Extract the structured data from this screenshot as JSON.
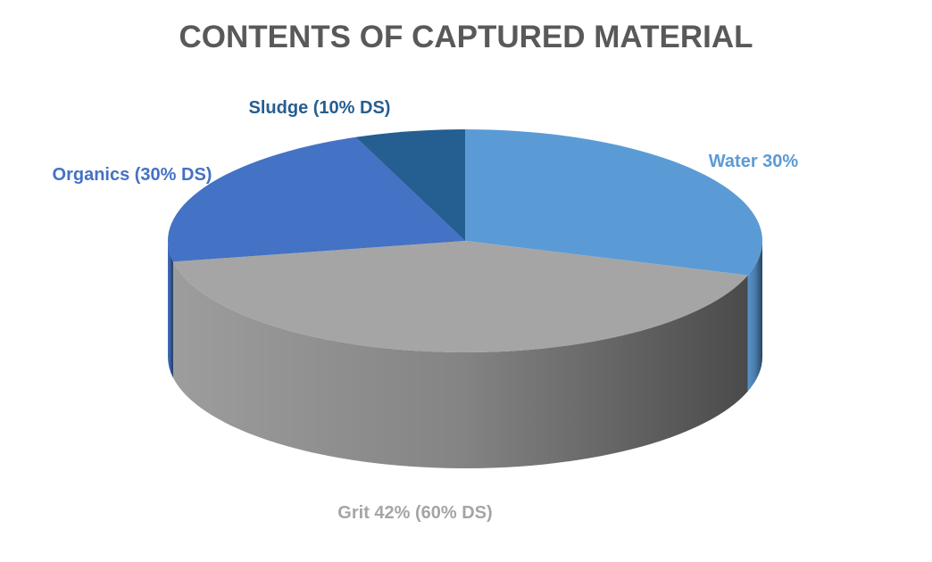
{
  "chart_data": {
    "type": "pie",
    "title": "CONTENTS OF CAPTURED MATERIAL",
    "categories": [
      "Water 30%",
      "Grit 42% (60% DS)",
      "Organics (30% DS)",
      "Sludge (10% DS)"
    ],
    "values": [
      30,
      42,
      22,
      6
    ],
    "colors": [
      "#5b9bd5",
      "#a5a5a5",
      "#4472c4",
      "#255e91"
    ]
  }
}
